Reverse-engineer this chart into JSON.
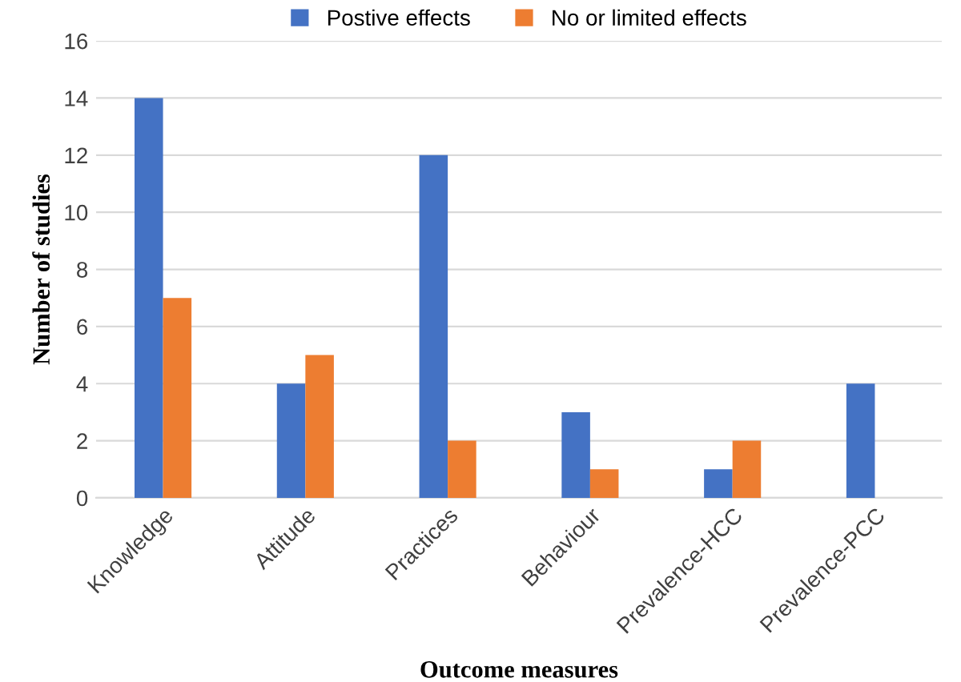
{
  "chart_data": {
    "type": "bar",
    "xlabel": "Outcome measures",
    "ylabel": "Number of studies",
    "categories": [
      "Knowledge",
      "Attitude",
      "Practices",
      "Behaviour",
      "Prevalence-HCC",
      "Prevalence-PCC"
    ],
    "series": [
      {
        "name": "Postive effects",
        "color": "#4472c4",
        "values": [
          14,
          4,
          12,
          3,
          1,
          4
        ]
      },
      {
        "name": "No or limited effects",
        "color": "#ed7d31",
        "values": [
          7,
          5,
          2,
          1,
          2,
          0
        ]
      }
    ],
    "ylim": [
      0,
      16
    ],
    "yticks": [
      0,
      2,
      4,
      6,
      8,
      10,
      12,
      14,
      16
    ],
    "grid": "y",
    "legend": "top"
  }
}
